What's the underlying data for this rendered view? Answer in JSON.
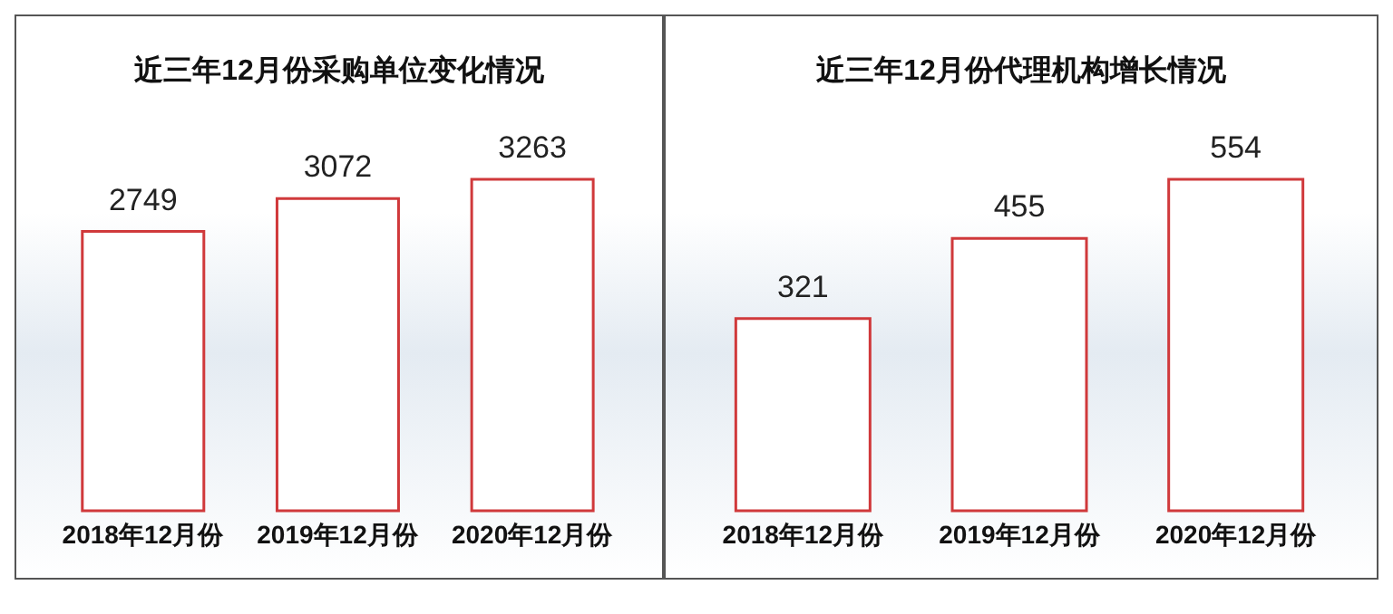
{
  "chart_data": [
    {
      "type": "bar",
      "title": "近三年12月份采购单位变化情况",
      "categories": [
        "2018年12月份",
        "2019年12月份",
        "2020年12月份"
      ],
      "values": [
        2749,
        3072,
        3263
      ],
      "color": "#d0393b",
      "data_labels": true
    },
    {
      "type": "bar",
      "title": "近三年12月份代理机构增长情况",
      "categories": [
        "2018年12月份",
        "2019年12月份",
        "2020年12月份"
      ],
      "values": [
        321,
        455,
        554
      ],
      "color": "#d0393b",
      "data_labels": true
    }
  ]
}
